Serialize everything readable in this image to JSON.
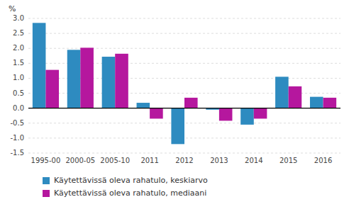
{
  "chart_data": {
    "type": "bar",
    "ylabel": "%",
    "categories": [
      "1995-00",
      "2000-05",
      "2005-10",
      "2011",
      "2012",
      "2013",
      "2014",
      "2015",
      "2016"
    ],
    "series": [
      {
        "name": "Käytettävissä oleva rahatulo, keskiarvo",
        "color": "#2E8BC0",
        "values": [
          2.85,
          1.95,
          1.72,
          0.18,
          -1.2,
          -0.05,
          -0.55,
          1.05,
          0.38
        ]
      },
      {
        "name": "Käytettävissä oleva rahatulo, mediaani",
        "color": "#B5179E",
        "values": [
          1.28,
          2.02,
          1.82,
          -0.35,
          0.35,
          -0.42,
          -0.35,
          0.73,
          0.35
        ]
      }
    ],
    "ylim": [
      -1.5,
      3.0
    ],
    "yticks": [
      -1.5,
      {
        "value": -1,
        "label": "-1.0"
      },
      -0.5,
      {
        "value": 0,
        "label": "0.0"
      },
      0.5,
      {
        "value": 1,
        "label": "1.0"
      },
      1.5,
      {
        "value": 2,
        "label": "2.0"
      },
      2.5,
      {
        "value": 3,
        "label": "3.0"
      }
    ],
    "grid": true,
    "legend": "bottom"
  }
}
